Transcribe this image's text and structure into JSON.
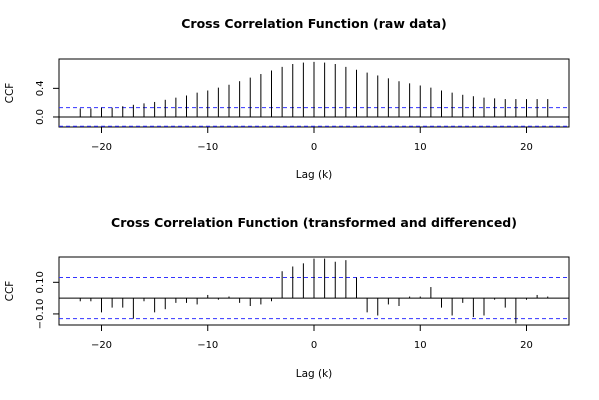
{
  "chart_data": [
    {
      "type": "bar",
      "title": "Cross Correlation Function (raw data)",
      "xlabel": "Lag (k)",
      "ylabel": "CCF",
      "xlim": [
        -24,
        24
      ],
      "ylim": [
        -0.14,
        0.81
      ],
      "xticks": [
        -20,
        -10,
        0,
        10,
        20
      ],
      "yticks": [
        0.0,
        0.4
      ],
      "ci": 0.13,
      "x": [
        -22,
        -21,
        -20,
        -19,
        -18,
        -17,
        -16,
        -15,
        -14,
        -13,
        -12,
        -11,
        -10,
        -9,
        -8,
        -7,
        -6,
        -5,
        -4,
        -3,
        -2,
        -1,
        0,
        1,
        2,
        3,
        4,
        5,
        6,
        7,
        8,
        9,
        10,
        11,
        12,
        13,
        14,
        15,
        16,
        17,
        18,
        19,
        20,
        21,
        22
      ],
      "values": [
        0.12,
        0.12,
        0.13,
        0.13,
        0.15,
        0.17,
        0.19,
        0.21,
        0.24,
        0.27,
        0.3,
        0.34,
        0.37,
        0.41,
        0.45,
        0.5,
        0.55,
        0.6,
        0.65,
        0.7,
        0.74,
        0.76,
        0.77,
        0.76,
        0.74,
        0.7,
        0.66,
        0.62,
        0.58,
        0.54,
        0.5,
        0.47,
        0.44,
        0.41,
        0.37,
        0.34,
        0.31,
        0.29,
        0.27,
        0.26,
        0.25,
        0.25,
        0.25,
        0.25,
        0.25
      ]
    },
    {
      "type": "bar",
      "title": "Cross Correlation Function (transformed and differenced)",
      "xlabel": "Lag (k)",
      "ylabel": "CCF",
      "xlim": [
        -24,
        24
      ],
      "ylim": [
        -0.17,
        0.26
      ],
      "xticks": [
        -20,
        -10,
        0,
        10,
        20
      ],
      "yticks": [
        -0.1,
        0.1
      ],
      "yticklabels": [
        "−0.10",
        "0.10"
      ],
      "ci": 0.13,
      "x": [
        -22,
        -21,
        -20,
        -19,
        -18,
        -17,
        -16,
        -15,
        -14,
        -13,
        -12,
        -11,
        -10,
        -9,
        -8,
        -7,
        -6,
        -5,
        -4,
        -3,
        -2,
        -1,
        0,
        1,
        2,
        3,
        4,
        5,
        6,
        7,
        8,
        9,
        10,
        11,
        12,
        13,
        14,
        15,
        16,
        17,
        18,
        19,
        20,
        21,
        22
      ],
      "values": [
        -0.02,
        -0.02,
        -0.09,
        -0.06,
        -0.06,
        -0.13,
        -0.02,
        -0.09,
        -0.07,
        -0.03,
        -0.03,
        -0.04,
        0.02,
        -0.01,
        0.01,
        -0.03,
        -0.05,
        -0.04,
        -0.02,
        0.17,
        0.2,
        0.22,
        0.25,
        0.25,
        0.23,
        0.24,
        0.13,
        -0.09,
        -0.11,
        -0.04,
        -0.05,
        0.01,
        0.01,
        0.07,
        -0.06,
        -0.11,
        -0.03,
        -0.12,
        -0.11,
        -0.01,
        -0.06,
        -0.16,
        -0.01,
        0.02,
        0.01
      ]
    }
  ]
}
